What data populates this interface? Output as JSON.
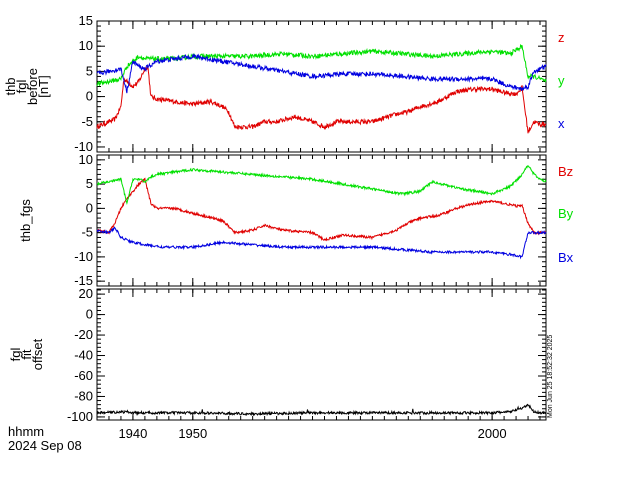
{
  "window_title": "",
  "chart_data": [
    {
      "type": "line",
      "ylabel": [
        "thb",
        "fgl",
        "before",
        "[nT]"
      ],
      "ylim": [
        -11,
        15
      ],
      "yticks": [
        15,
        10,
        5,
        0,
        -5,
        -10
      ],
      "xlim": [
        1934,
        2009
      ],
      "series": [
        {
          "name": "z",
          "color": "#e00000",
          "x": [
            1934,
            1937,
            1938,
            1938.5,
            1939,
            1940,
            1941,
            1942,
            1942.5,
            1943,
            1944,
            1947,
            1950,
            1953,
            1955,
            1956,
            1957,
            1960,
            1962,
            1964,
            1967,
            1970,
            1972,
            1974,
            1977,
            1980,
            1984,
            1986,
            1988,
            1991,
            1994,
            1997,
            2000,
            2002,
            2004,
            2005,
            2006,
            2007,
            2008,
            2009
          ],
          "y": [
            -6,
            -4.5,
            -2,
            3.5,
            3,
            2,
            3,
            5.5,
            6,
            0,
            -0.5,
            -1,
            -1.5,
            -1,
            -2,
            -3,
            -6,
            -6,
            -5,
            -5,
            -4,
            -5,
            -6,
            -5,
            -5,
            -5,
            -3.5,
            -3,
            -2,
            -1,
            1,
            1.5,
            1.5,
            0.8,
            0.5,
            1.8,
            -7,
            -5,
            -5.5,
            -5.5
          ]
        },
        {
          "name": "y",
          "color": "#00e000",
          "x": [
            1934,
            1936,
            1938,
            1939,
            1940,
            1941,
            1942,
            1943,
            1944,
            1947,
            1950,
            1955,
            1960,
            1965,
            1970,
            1975,
            1980,
            1985,
            1990,
            1995,
            2000,
            2003,
            2005,
            2006,
            2007,
            2009
          ],
          "y": [
            2.5,
            3,
            3.5,
            6,
            7,
            8,
            7.5,
            7.5,
            7.5,
            7.5,
            8,
            8,
            8,
            8.5,
            8,
            8.5,
            9,
            8.5,
            8,
            8.5,
            9,
            8.5,
            10,
            4,
            4,
            3
          ]
        },
        {
          "name": "x",
          "color": "#0000e0",
          "x": [
            1934,
            1936,
            1938,
            1939,
            1940,
            1941,
            1942,
            1944,
            1947,
            1950,
            1955,
            1960,
            1965,
            1970,
            1975,
            1980,
            1985,
            1990,
            1995,
            2000,
            2003,
            2005,
            2006,
            2007,
            2009
          ],
          "y": [
            4.5,
            5,
            5.5,
            1,
            7,
            6,
            5.5,
            7,
            7.5,
            8,
            7,
            6,
            5,
            4,
            4.5,
            4.5,
            4,
            3.5,
            3.5,
            3.5,
            2,
            1.5,
            2,
            5,
            6
          ]
        }
      ]
    },
    {
      "type": "line",
      "ylabel": [
        "thb_fgs"
      ],
      "ylim": [
        -16,
        11
      ],
      "yticks": [
        10,
        5,
        0,
        -5,
        -10,
        -15
      ],
      "xlim": [
        1934,
        2009
      ],
      "series": [
        {
          "name": "Bz",
          "color": "#e00000",
          "x": [
            1934,
            1936,
            1937,
            1938,
            1939,
            1940,
            1941,
            1942,
            1943,
            1944,
            1947,
            1950,
            1955,
            1957,
            1960,
            1962,
            1965,
            1970,
            1972,
            1975,
            1980,
            1984,
            1986,
            1988,
            1991,
            1994,
            1997,
            2000,
            2002,
            2004,
            2005,
            2006,
            2007,
            2008,
            2009
          ],
          "y": [
            -4.5,
            -5,
            -3,
            0,
            2,
            3.5,
            5,
            6,
            1,
            0,
            0,
            -1,
            -2.5,
            -5,
            -4.5,
            -3.5,
            -4.5,
            -5,
            -6.5,
            -5.5,
            -6,
            -4.5,
            -3,
            -2,
            -1.5,
            0,
            1,
            1.5,
            1,
            0.5,
            0.5,
            -3,
            -5,
            -5,
            -5
          ]
        },
        {
          "name": "By",
          "color": "#00e000",
          "x": [
            1934,
            1936,
            1938,
            1939,
            1940,
            1941,
            1942,
            1943,
            1944,
            1947,
            1950,
            1955,
            1960,
            1965,
            1970,
            1975,
            1980,
            1985,
            1988,
            1990,
            1995,
            2000,
            2003,
            2005,
            2006,
            2007,
            2008,
            2009
          ],
          "y": [
            5,
            5.5,
            6,
            1,
            6,
            6,
            5.5,
            6.5,
            7,
            7.5,
            8,
            7.5,
            7,
            6.5,
            6,
            5,
            4,
            3,
            3.5,
            5.5,
            4,
            3,
            4.5,
            7,
            9,
            7,
            6,
            5.5
          ]
        },
        {
          "name": "Bx",
          "color": "#0000e0",
          "x": [
            1934,
            1936,
            1937,
            1938,
            1940,
            1942,
            1945,
            1950,
            1955,
            1960,
            1965,
            1970,
            1975,
            1980,
            1985,
            1990,
            1995,
            2000,
            2003,
            2005,
            2006,
            2007,
            2008,
            2009
          ],
          "y": [
            -4.5,
            -5,
            -4,
            -6,
            -7,
            -7.5,
            -8,
            -8,
            -7,
            -7.5,
            -8,
            -8,
            -8,
            -8,
            -8.5,
            -9,
            -9,
            -9,
            -9.5,
            -10,
            -5,
            -5,
            -5,
            -5
          ]
        }
      ]
    },
    {
      "type": "line",
      "ylabel": [
        "fgl",
        "fit",
        "offset"
      ],
      "ylim": [
        -103,
        25
      ],
      "yticks": [
        20,
        0,
        -20,
        -40,
        -60,
        -80,
        -100
      ],
      "xlim": [
        1934,
        2009
      ],
      "series": [
        {
          "name": "",
          "color": "#000000",
          "x": [
            1934,
            1939,
            1940,
            1950,
            1960,
            1970,
            1980,
            1990,
            2000,
            2003,
            2004,
            2005,
            2006,
            2007,
            2008,
            2009
          ],
          "y": [
            -96,
            -95,
            -96,
            -96,
            -97,
            -96,
            -96,
            -96,
            -96,
            -95,
            -93,
            -92,
            -88,
            -95,
            -96,
            -96
          ]
        }
      ]
    }
  ],
  "x_axis": {
    "ticks": [
      1940,
      1950,
      2000
    ],
    "unit_label": "hhmm",
    "date_label": "2024 Sep 08"
  },
  "timestamp": "Mon Jun 25 18:52:32 2025"
}
